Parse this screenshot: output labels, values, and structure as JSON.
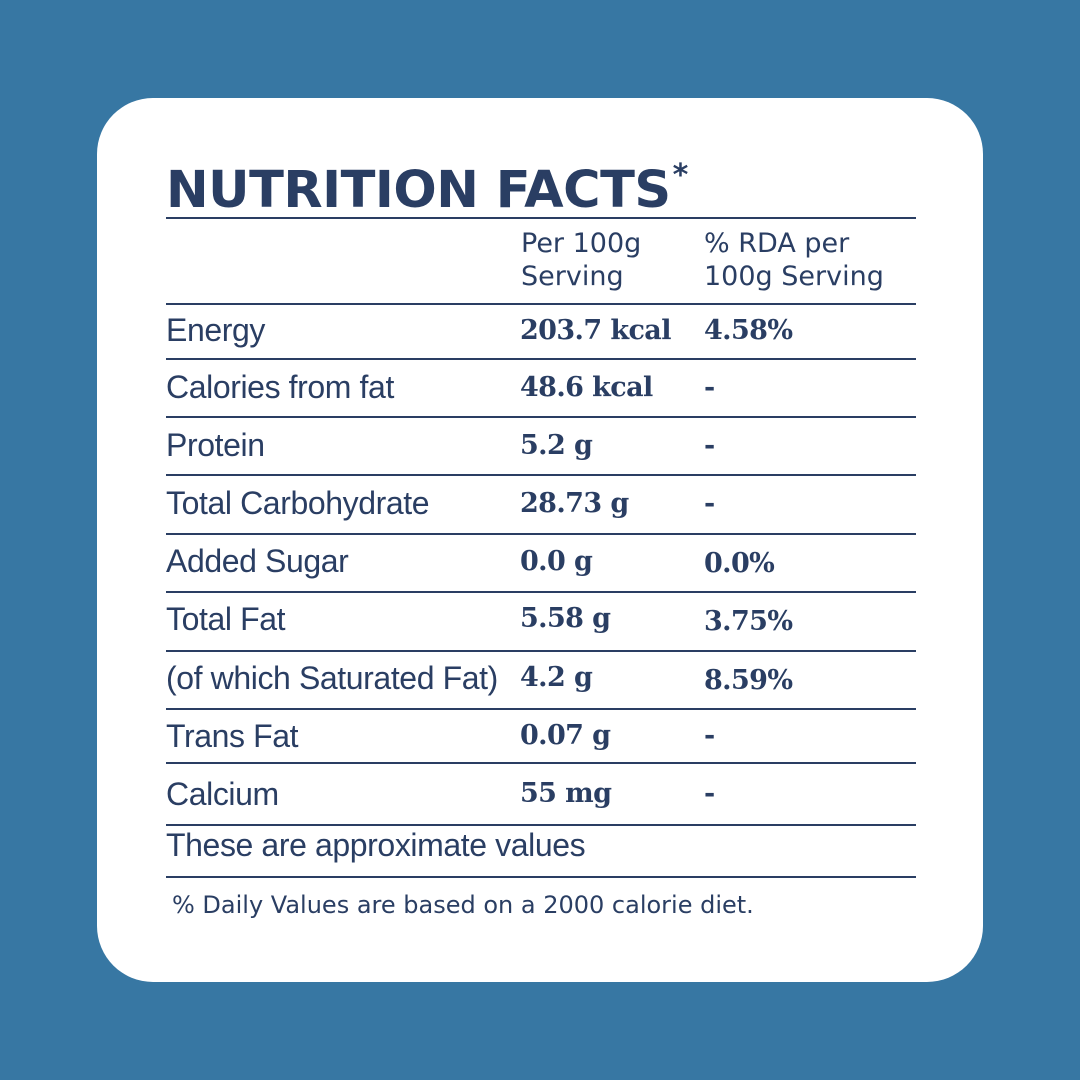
{
  "title": "NUTRITION FACTS",
  "title_marker": "*",
  "columns": {
    "per_serving": [
      "Per 100g",
      "Serving"
    ],
    "rda": [
      "% RDA per",
      "100g Serving"
    ]
  },
  "rows": [
    {
      "label": "Energy",
      "value": "203.7 kcal",
      "rda": "4.58%"
    },
    {
      "label": "Calories from fat",
      "value": "48.6 kcal",
      "rda": "-"
    },
    {
      "label": "Protein",
      "value": "5.2 g",
      "rda": "-"
    },
    {
      "label": "Total  Carbohydrate",
      "value": "28.73 g",
      "rda": "-"
    },
    {
      "label": "Added Sugar",
      "value": "0.0 g",
      "rda": "0.0%"
    },
    {
      "label": "Total  Fat",
      "value": "5.58 g",
      "rda": "3.75%"
    },
    {
      "label": "(of which Saturated Fat)",
      "value": "4.2 g",
      "rda": "8.59%"
    },
    {
      "label": "Trans  Fat",
      "value": "0.07 g",
      "rda": "-"
    },
    {
      "label": "Calcium",
      "value": "55 mg",
      "rda": "-"
    }
  ],
  "note": "These are approximate values",
  "footnote": "% Daily Values are based on a 2000 calorie diet.",
  "colors": {
    "background": "#3777a3",
    "card": "#ffffff",
    "text": "#2a3e63"
  }
}
